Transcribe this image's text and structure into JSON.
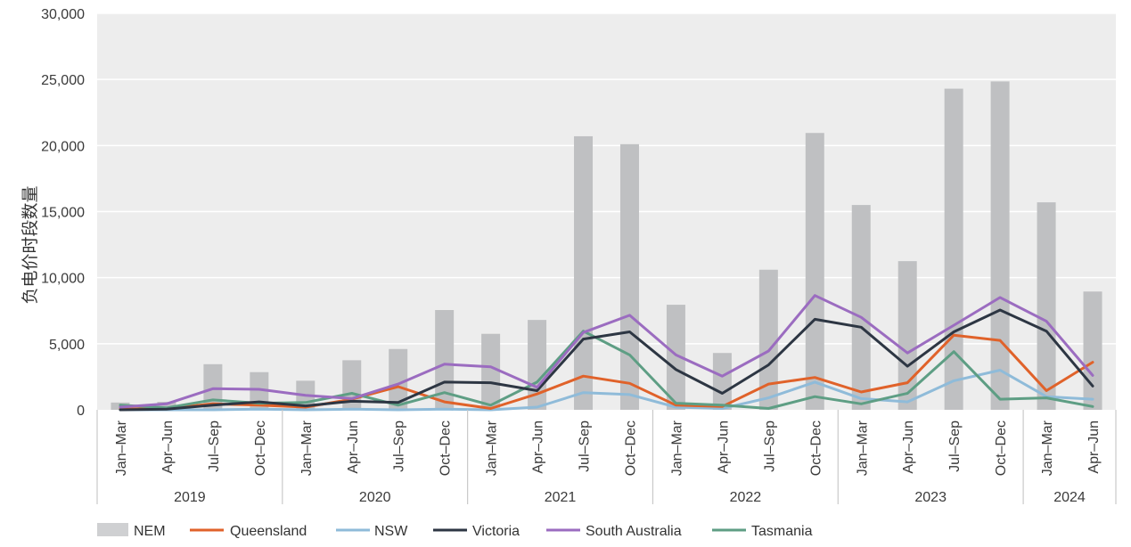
{
  "chart_data": {
    "type": "bar+line",
    "title": "",
    "xlabel": "",
    "ylabel": "负电价时段数量",
    "ylim": [
      0,
      30000
    ],
    "yticks": [
      0,
      5000,
      10000,
      15000,
      20000,
      25000,
      30000
    ],
    "ytick_labels": [
      "0",
      "5,000",
      "10,000",
      "15,000",
      "20,000",
      "25,000",
      "30,000"
    ],
    "grid": true,
    "legend_position": "bottom",
    "categories": [
      "Jan–Mar",
      "Apr–Jun",
      "Jul–Sep",
      "Oct–Dec",
      "Jan–Mar",
      "Apr–Jun",
      "Jul–Sep",
      "Oct–Dec",
      "Jan–Mar",
      "Apr–Jun",
      "Jul–Sep",
      "Oct–Dec",
      "Jan–Mar",
      "Apr–Jun",
      "Jul–Sep",
      "Oct–Dec",
      "Jan–Mar",
      "Apr–Jun",
      "Jul–Sep",
      "Oct–Dec",
      "Jan–Mar",
      "Apr–Jun"
    ],
    "year_groups": [
      {
        "label": "2019",
        "count": 4
      },
      {
        "label": "2020",
        "count": 4
      },
      {
        "label": "2021",
        "count": 4
      },
      {
        "label": "2022",
        "count": 4
      },
      {
        "label": "2023",
        "count": 4
      },
      {
        "label": "2024",
        "count": 2
      }
    ],
    "series": [
      {
        "name": "NEM",
        "kind": "bar",
        "color": "#bfc0c2",
        "values": [
          550,
          600,
          3450,
          2850,
          2200,
          3750,
          4600,
          7550,
          5750,
          6800,
          20700,
          20100,
          7950,
          4300,
          10600,
          20950,
          15500,
          11250,
          24300,
          24850,
          15700,
          8950
        ]
      },
      {
        "name": "Queensland",
        "kind": "line",
        "color": "#e0622a",
        "values": [
          50,
          100,
          450,
          350,
          200,
          800,
          1750,
          600,
          100,
          1200,
          2550,
          2000,
          350,
          250,
          1950,
          2450,
          1350,
          2050,
          5650,
          5250,
          1450,
          3600
        ]
      },
      {
        "name": "NSW",
        "kind": "line",
        "color": "#8fbbd9",
        "values": [
          0,
          0,
          0,
          50,
          0,
          50,
          0,
          50,
          0,
          200,
          1300,
          1150,
          200,
          100,
          900,
          2100,
          850,
          600,
          2200,
          3000,
          1000,
          800
        ]
      },
      {
        "name": "Victoria",
        "kind": "line",
        "color": "#2d3643",
        "values": [
          0,
          50,
          350,
          600,
          300,
          650,
          550,
          2100,
          2050,
          1450,
          5350,
          5900,
          3050,
          1250,
          3400,
          6850,
          6250,
          3300,
          5900,
          7550,
          5950,
          1800
        ]
      },
      {
        "name": "South Australia",
        "kind": "line",
        "color": "#9b6cc0",
        "values": [
          200,
          450,
          1600,
          1550,
          1100,
          850,
          1950,
          3450,
          3250,
          1700,
          5850,
          7150,
          4150,
          2550,
          4450,
          8650,
          7000,
          4300,
          6400,
          8500,
          6700,
          2600
        ]
      },
      {
        "name": "Tasmania",
        "kind": "line",
        "color": "#5e9e84",
        "values": [
          350,
          150,
          750,
          500,
          550,
          1250,
          350,
          1300,
          350,
          2100,
          5950,
          4150,
          500,
          350,
          100,
          1000,
          450,
          1250,
          4400,
          800,
          900,
          250
        ]
      }
    ]
  },
  "colors": {
    "plot_background": "#ededed",
    "gridline": "#ffffff",
    "axis_text": "#3a3a3a",
    "separator": "#c9c9c9"
  }
}
